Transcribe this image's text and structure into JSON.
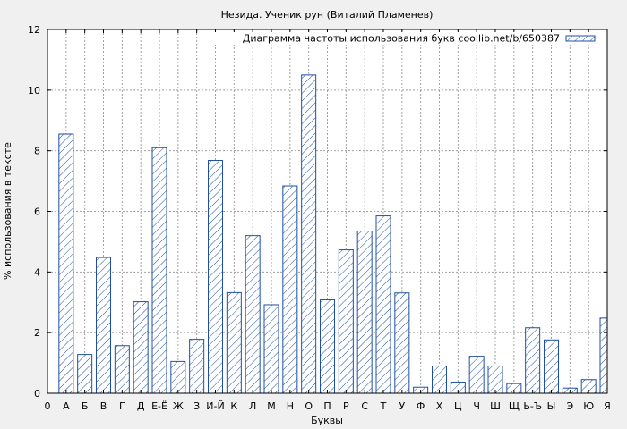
{
  "chart_data": {
    "type": "bar",
    "title": "Незида. Ученик рун (Виталий Пламенев)",
    "xlabel": "Буквы",
    "ylabel": "% использования в тексте",
    "legend": "Диаграмма частоты использования букв coollib.net/b/650387",
    "legend_position": "top-right",
    "grid": true,
    "ylim": [
      0,
      12
    ],
    "yticks": [
      "0",
      "2",
      "4",
      "6",
      "8",
      "10",
      "12"
    ],
    "x_origin_label": "0",
    "categories": [
      "А",
      "Б",
      "В",
      "Г",
      "Д",
      "Е-Ё",
      "Ж",
      "З",
      "И-Й",
      "К",
      "Л",
      "М",
      "Н",
      "О",
      "П",
      "Р",
      "С",
      "Т",
      "У",
      "Ф",
      "Х",
      "Ц",
      "Ч",
      "Ш",
      "Щ",
      "Ь-Ъ",
      "Ы",
      "Э",
      "Ю",
      "Я"
    ],
    "values": [
      8.55,
      1.28,
      4.48,
      1.57,
      3.02,
      8.1,
      1.05,
      1.78,
      7.68,
      3.32,
      5.2,
      2.92,
      6.84,
      10.5,
      3.08,
      4.73,
      5.35,
      5.85,
      3.31,
      0.2,
      0.9,
      0.37,
      1.22,
      0.9,
      0.32,
      2.16,
      1.76,
      0.17,
      0.45,
      2.48
    ],
    "colors": {
      "bar_stroke": "#1f4fa3",
      "bar_hatch": "#1f4fa3",
      "bar_fill": "#ffffff",
      "grid": "#a0a0a0",
      "background": "#f0f0f0",
      "plot_bg": "#ffffff"
    }
  }
}
